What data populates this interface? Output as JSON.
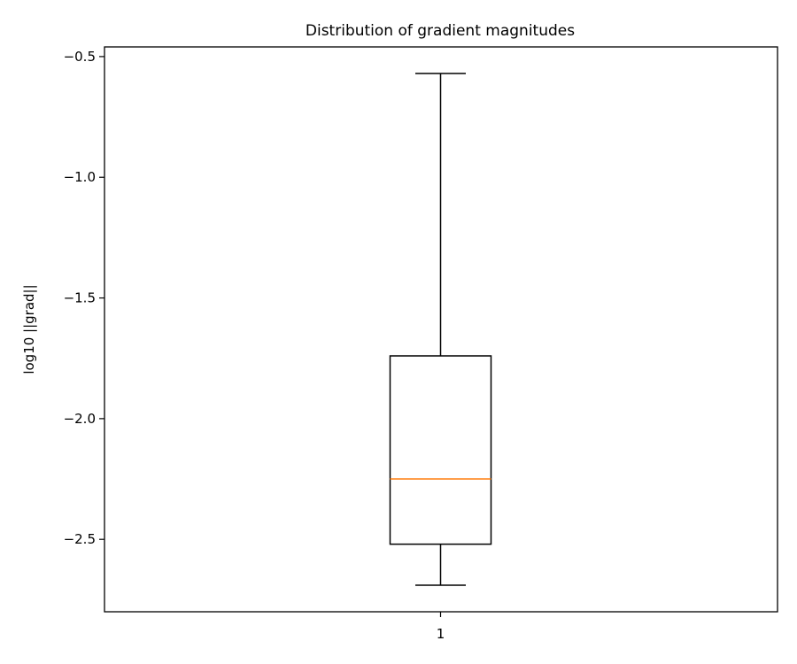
{
  "chart_data": {
    "type": "box",
    "title": "Distribution of gradient magnitudes",
    "xlabel": "",
    "ylabel": "log10 ||grad||",
    "ylim": [
      -2.8,
      -0.46
    ],
    "yticks": [
      -0.5,
      -1.0,
      -1.5,
      -2.0,
      -2.5
    ],
    "ytick_labels": [
      "−0.5",
      "−1.0",
      "−1.5",
      "−2.0",
      "−2.5"
    ],
    "categories": [
      "1"
    ],
    "boxes": [
      {
        "category": "1",
        "whisker_low": -2.69,
        "q1": -2.52,
        "median": -2.25,
        "q3": -1.74,
        "whisker_high": -0.57
      }
    ],
    "grid": false,
    "colors": {
      "box": "#000000",
      "median": "#ff7f0e",
      "background": "#ffffff"
    }
  }
}
